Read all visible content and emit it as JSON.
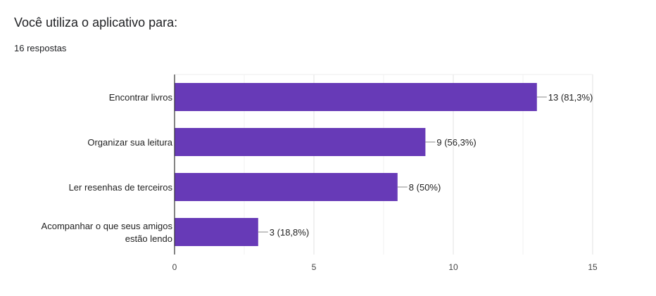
{
  "header": {
    "title": "Você utiliza o aplicativo para:",
    "responses": "16 respostas"
  },
  "chart_data": {
    "type": "bar",
    "orientation": "horizontal",
    "categories": [
      [
        "Encontrar livros"
      ],
      [
        "Organizar sua leitura"
      ],
      [
        "Ler resenhas de terceiros"
      ],
      [
        "Acompanhar o que seus amigos",
        "estão lendo"
      ]
    ],
    "values": [
      13,
      9,
      8,
      3
    ],
    "data_labels": [
      "13 (81,3%)",
      "9 (56,3%)",
      "8 (50%)",
      "3 (18,8%)"
    ],
    "xlim": [
      0,
      15
    ],
    "xticks": [
      0,
      5,
      10,
      15
    ],
    "grid": true,
    "bar_color": "#673ab7"
  }
}
